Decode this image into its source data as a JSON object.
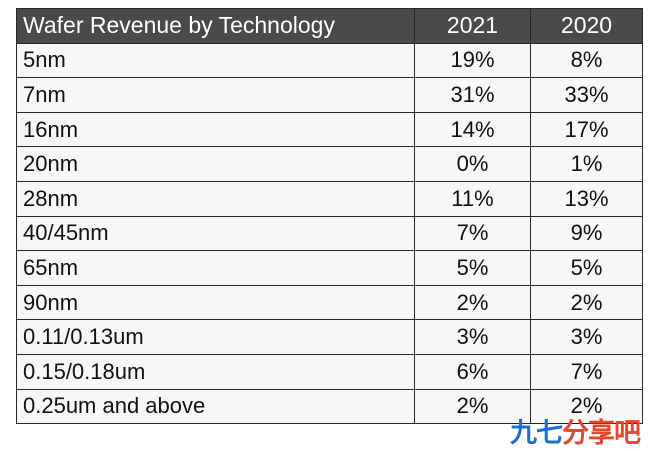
{
  "chart_data": {
    "type": "table",
    "columns": [
      "Wafer Revenue by Technology",
      "2021",
      "2020"
    ],
    "rows": [
      {
        "technology": "5nm",
        "y2021": "19%",
        "y2020": "8%"
      },
      {
        "technology": "7nm",
        "y2021": "31%",
        "y2020": "33%"
      },
      {
        "technology": "16nm",
        "y2021": "14%",
        "y2020": "17%"
      },
      {
        "technology": "20nm",
        "y2021": "0%",
        "y2020": "1%"
      },
      {
        "technology": "28nm",
        "y2021": "11%",
        "y2020": "13%"
      },
      {
        "technology": "40/45nm",
        "y2021": "7%",
        "y2020": "9%"
      },
      {
        "technology": "65nm",
        "y2021": "5%",
        "y2020": "5%"
      },
      {
        "technology": "90nm",
        "y2021": "2%",
        "y2020": "2%"
      },
      {
        "technology": "0.11/0.13um",
        "y2021": "3%",
        "y2020": "3%"
      },
      {
        "technology": "0.15/0.18um",
        "y2021": "6%",
        "y2020": "7%"
      },
      {
        "technology": "0.25um and above",
        "y2021": "2%",
        "y2020": "2%"
      }
    ]
  },
  "colors": {
    "header_background": "#4a4a4a",
    "header_text": "#ffffff",
    "cell_background": "#f7f7f7",
    "border": "#262626"
  },
  "watermark": {
    "part1": "九七",
    "part2": "分享吧"
  }
}
